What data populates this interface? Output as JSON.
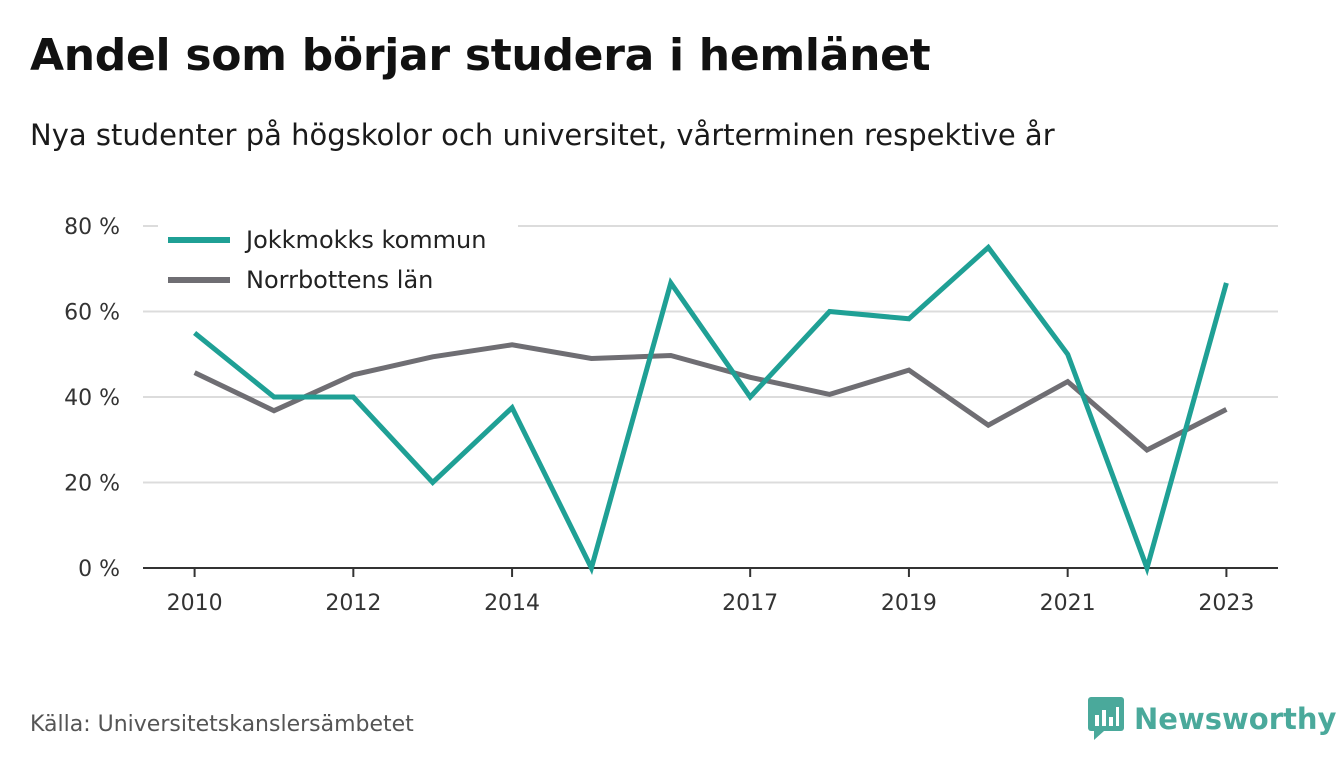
{
  "title": "Andel som börjar studera i hemlänet",
  "subtitle": "Nya studenter på högskolor och universitet, vårterminen respektive år",
  "source": "Källa: Universitetskanslersämbetet",
  "brand": {
    "name": "Newsworthy",
    "icon": "newsworthy-logo-icon",
    "color": "#4aa99b"
  },
  "chart_data": {
    "type": "line",
    "x": [
      2010,
      2011,
      2012,
      2013,
      2014,
      2015,
      2016,
      2017,
      2018,
      2019,
      2020,
      2021,
      2022,
      2023
    ],
    "x_tick_labels": [
      "2010",
      "2012",
      "2014",
      "2017",
      "2019",
      "2021",
      "2023"
    ],
    "x_tick_values": [
      2010,
      2012,
      2014,
      2017,
      2019,
      2021,
      2023
    ],
    "y_tick_labels": [
      "0 %",
      "20 %",
      "40 %",
      "60 %",
      "80 %"
    ],
    "y_tick_values": [
      0,
      20,
      40,
      60,
      80
    ],
    "ylim": [
      0,
      80
    ],
    "grid": true,
    "legend_position": "top-left",
    "series": [
      {
        "name": "Jokkmokks kommun",
        "color": "#1fa095",
        "values": [
          55,
          40,
          40,
          20,
          37.5,
          0,
          66.7,
          40,
          60,
          58.3,
          75,
          50,
          0,
          66.7
        ]
      },
      {
        "name": "Norrbottens län",
        "color": "#6f6e73",
        "values": [
          45.7,
          36.8,
          45.2,
          49.4,
          52.2,
          49,
          49.7,
          44.6,
          40.6,
          46.3,
          33.4,
          43.6,
          27.6,
          37.1
        ]
      }
    ]
  }
}
